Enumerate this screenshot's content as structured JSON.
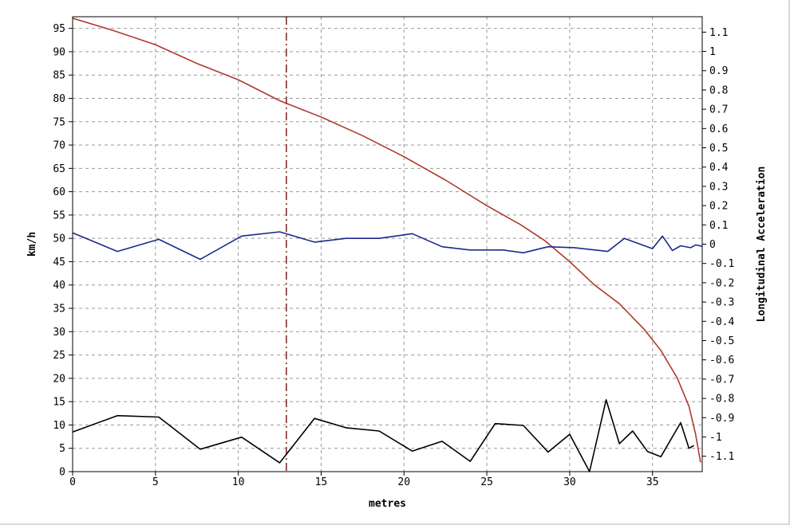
{
  "chart_data": {
    "type": "line",
    "xlabel": "metres",
    "ylabel": "km/h",
    "y2label": "Longitudinal Acceleration",
    "xlim": [
      0,
      38
    ],
    "ylim": [
      0,
      97.5
    ],
    "y2lim": [
      -1.18,
      1.18
    ],
    "x_ticks": [
      0,
      5,
      10,
      15,
      20,
      25,
      30,
      35
    ],
    "y_ticks": [
      0,
      5,
      10,
      15,
      20,
      25,
      30,
      35,
      40,
      45,
      50,
      55,
      60,
      65,
      70,
      75,
      80,
      85,
      90,
      95
    ],
    "y2_ticks": [
      1.1,
      1,
      0.9,
      0.8,
      0.7,
      0.6,
      0.5,
      0.4,
      0.3,
      0.2,
      0.1,
      0,
      -0.1,
      -0.2,
      -0.3,
      -0.4,
      -0.5,
      -0.6,
      -0.7,
      -0.8,
      -0.9,
      -1,
      -1.1
    ],
    "y2_tick_labels": [
      "1.1",
      "1",
      "0.9",
      "0.8",
      "0.7",
      "0.6",
      "0.5",
      "0.4",
      "0.3",
      "0.2",
      "0.1",
      "0",
      "-0.1",
      "-0.2",
      "-0.3",
      "-0.4",
      "-0.5",
      "-0.6",
      "-0.7",
      "-0.8",
      "-0.9",
      "-1",
      "-1.1"
    ],
    "marker_x": 12.9,
    "grid": true,
    "series": [
      {
        "axis": "left",
        "color": "#b03a2e",
        "points": [
          [
            0,
            97.2
          ],
          [
            2.5,
            94.5
          ],
          [
            5,
            91.5
          ],
          [
            7.5,
            87.5
          ],
          [
            10,
            84
          ],
          [
            12.5,
            79.5
          ],
          [
            15,
            76
          ],
          [
            17.5,
            72
          ],
          [
            20,
            67.5
          ],
          [
            22.5,
            62.5
          ],
          [
            25,
            57
          ],
          [
            27,
            53
          ],
          [
            28.5,
            49.5
          ],
          [
            30,
            45
          ],
          [
            31.5,
            40
          ],
          [
            33,
            36
          ],
          [
            34.5,
            30.5
          ],
          [
            35.5,
            26
          ],
          [
            36.5,
            20
          ],
          [
            37.2,
            14
          ],
          [
            37.6,
            8
          ],
          [
            37.9,
            2
          ]
        ]
      },
      {
        "axis": "left",
        "color": "#1a2a8c",
        "points": [
          [
            0,
            51.2
          ],
          [
            2.7,
            47.2
          ],
          [
            5.2,
            49.8
          ],
          [
            7.7,
            45.5
          ],
          [
            10.2,
            50.5
          ],
          [
            12.5,
            51.4
          ],
          [
            14.6,
            49.2
          ],
          [
            16.5,
            50
          ],
          [
            18.5,
            50
          ],
          [
            20.5,
            51
          ],
          [
            22.3,
            48.2
          ],
          [
            24,
            47.5
          ],
          [
            26,
            47.5
          ],
          [
            27.2,
            46.9
          ],
          [
            28.7,
            48.2
          ],
          [
            30.3,
            48
          ],
          [
            32.3,
            47.2
          ],
          [
            33.3,
            50
          ],
          [
            35,
            47.8
          ],
          [
            35.6,
            50.5
          ],
          [
            36.2,
            47.4
          ],
          [
            36.7,
            48.4
          ],
          [
            37.3,
            48
          ],
          [
            37.6,
            48.6
          ],
          [
            38,
            48.3
          ]
        ]
      },
      {
        "axis": "left",
        "color": "#000000",
        "points": [
          [
            0,
            8.5
          ],
          [
            2.7,
            12
          ],
          [
            5.2,
            11.7
          ],
          [
            7.7,
            4.8
          ],
          [
            10.2,
            7.4
          ],
          [
            12.5,
            1.9
          ],
          [
            14.6,
            11.4
          ],
          [
            16.5,
            9.4
          ],
          [
            18.5,
            8.7
          ],
          [
            20.5,
            4.4
          ],
          [
            22.3,
            6.5
          ],
          [
            24,
            2.2
          ],
          [
            25.5,
            10.3
          ],
          [
            27.2,
            9.9
          ],
          [
            28.7,
            4.2
          ],
          [
            30,
            8
          ],
          [
            31.2,
            0
          ],
          [
            32.2,
            15.4
          ],
          [
            33,
            6
          ],
          [
            33.8,
            8.7
          ],
          [
            34.7,
            4.3
          ],
          [
            35.5,
            3.2
          ],
          [
            36.7,
            10.5
          ],
          [
            37.2,
            5
          ],
          [
            37.5,
            5.6
          ]
        ]
      }
    ]
  }
}
